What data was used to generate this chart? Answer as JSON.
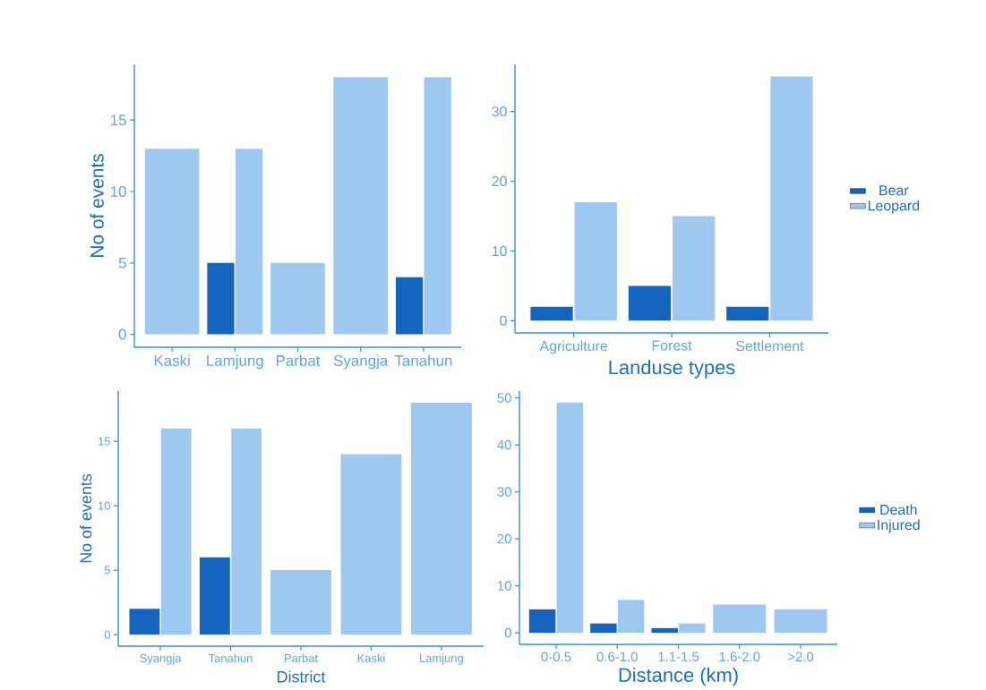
{
  "chart_data": [
    {
      "type": "bar",
      "categories": [
        "Kaski",
        "Lamjung",
        "Parbat",
        "Syangja",
        "Tanahun"
      ],
      "ylabel": "No of events",
      "ylim": [
        -0.9,
        18.9
      ],
      "yticks": [
        0,
        5,
        10,
        15
      ],
      "series": [
        {
          "color": "#1565c0",
          "values": [
            null,
            5,
            null,
            null,
            4
          ]
        },
        {
          "color": "#9fc8f0",
          "values": [
            13,
            13,
            5,
            18,
            18
          ]
        }
      ]
    },
    {
      "type": "bar",
      "categories": [
        "Agriculture",
        "Forest",
        "Settlement"
      ],
      "xlabel": "Landuse types",
      "ylim": [
        -1.75,
        36.75
      ],
      "yticks": [
        0,
        10,
        20,
        30
      ],
      "legend": "right",
      "series": [
        {
          "name": "Bear",
          "color": "#1565c0",
          "values": [
            2,
            5,
            2
          ]
        },
        {
          "name": "Leopard",
          "color": "#9fc8f0",
          "values": [
            17,
            15,
            35
          ]
        }
      ]
    },
    {
      "type": "bar",
      "categories": [
        "Syangja",
        "Tanahun",
        "Parbat",
        "Kaski",
        "Lamjung"
      ],
      "xlabel": "District",
      "ylabel": "No of events",
      "ylim": [
        -0.9,
        18.9
      ],
      "yticks": [
        0,
        5,
        10,
        15
      ],
      "series": [
        {
          "color": "#1565c0",
          "values": [
            2,
            6,
            null,
            null,
            null
          ]
        },
        {
          "color": "#9fc8f0",
          "values": [
            16,
            16,
            5,
            14,
            18
          ]
        }
      ]
    },
    {
      "type": "bar",
      "categories": [
        "0-0.5",
        "0.6-1.0",
        "1.1-1.5",
        "1.6-2.0",
        ">2.0"
      ],
      "xlabel": "Distance (km)",
      "ylim": [
        -2.45,
        51.45
      ],
      "yticks": [
        0,
        10,
        20,
        30,
        40,
        50
      ],
      "legend": "right",
      "series": [
        {
          "name": "Death",
          "color": "#1565c0",
          "values": [
            5,
            2,
            1,
            null,
            null
          ]
        },
        {
          "name": "Injured",
          "color": "#9fc8f0",
          "values": [
            49,
            7,
            2,
            6,
            5
          ]
        }
      ]
    }
  ]
}
